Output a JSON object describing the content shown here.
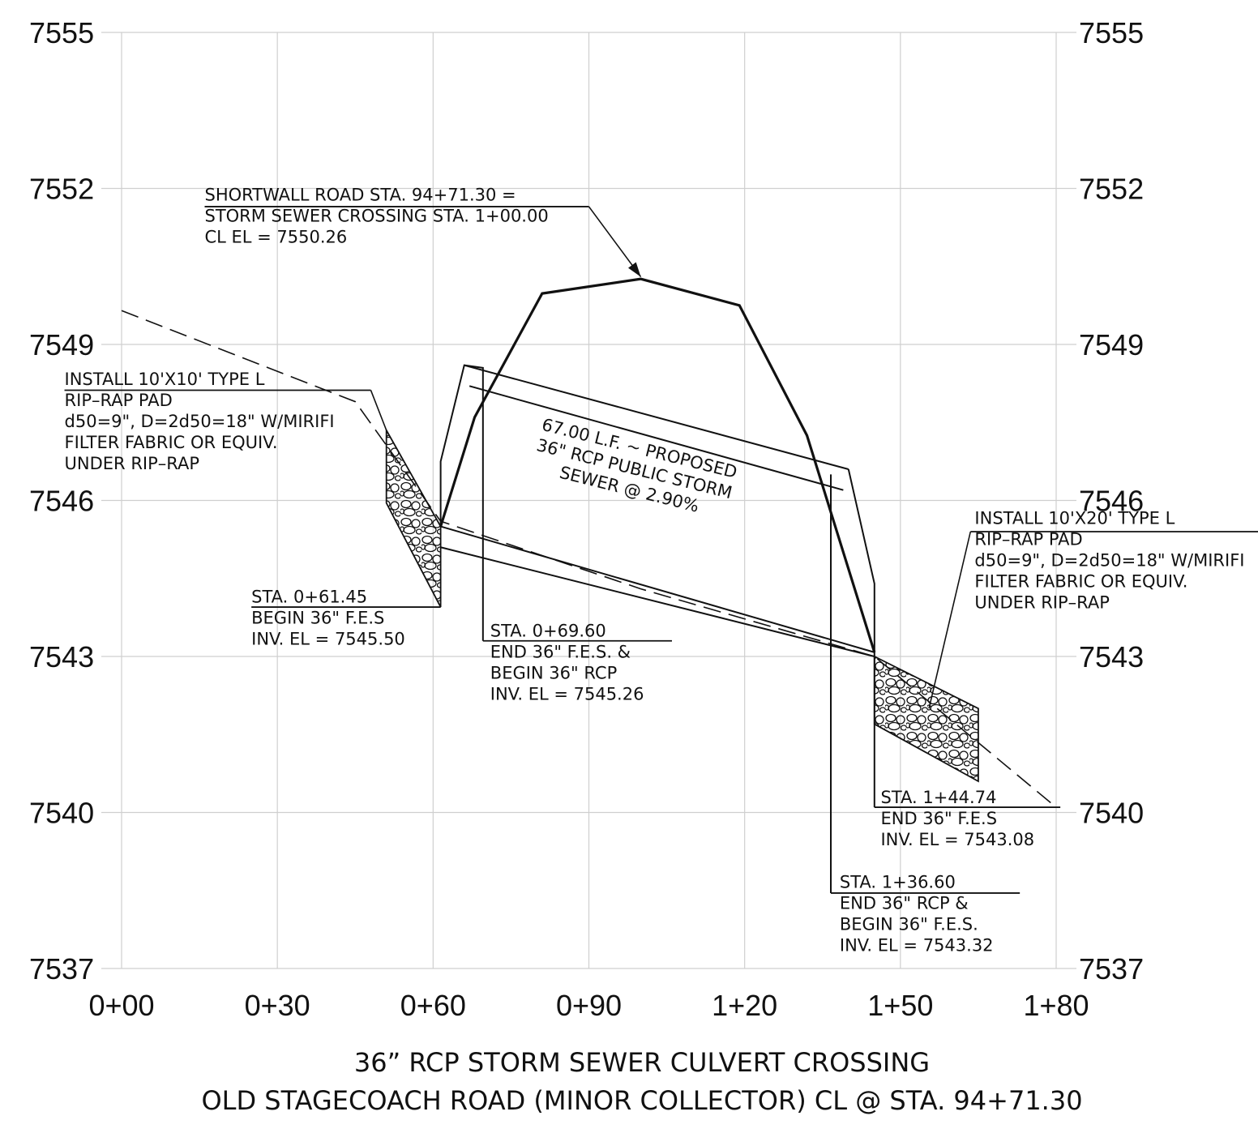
{
  "chart_data": {
    "type": "profile",
    "title_lines": [
      "36” RCP STORM SEWER CULVERT CROSSING",
      "OLD STAGECOACH ROAD (MINOR COLLECTOR) CL @ STA. 94+71.30"
    ],
    "x_ticks": [
      "0+00",
      "0+30",
      "0+60",
      "0+90",
      "1+20",
      "1+50",
      "1+80"
    ],
    "x_values": [
      0,
      30,
      60,
      90,
      120,
      150,
      180
    ],
    "y_ticks": [
      "7537",
      "7540",
      "7543",
      "7546",
      "7549",
      "7552",
      "7555"
    ],
    "y_values": [
      7537,
      7540,
      7543,
      7546,
      7549,
      7552,
      7555
    ],
    "xlim": [
      0,
      180
    ],
    "ylim": [
      7537,
      7555
    ],
    "grid": true,
    "series": [
      {
        "style": "dashed",
        "points": [
          [
            0,
            7549.65
          ],
          [
            45,
            7547.9
          ],
          [
            61.45,
            7545.6
          ],
          [
            100,
            7544.3
          ],
          [
            145,
            7543.0
          ],
          [
            180,
            7540.1
          ]
        ]
      },
      {
        "style": "bold",
        "points": [
          [
            61.45,
            7545.5
          ],
          [
            68,
            7547.6
          ],
          [
            81,
            7549.98
          ],
          [
            100,
            7550.26
          ],
          [
            119,
            7549.75
          ],
          [
            132,
            7547.25
          ],
          [
            145,
            7543.08
          ]
        ]
      },
      {
        "style": "pipe-invert",
        "points": [
          [
            61.45,
            7545.5
          ],
          [
            145,
            7543.08
          ]
        ]
      },
      {
        "style": "pipe-invert",
        "points": [
          [
            61.45,
            7545.1
          ],
          [
            145,
            7543.0
          ]
        ]
      },
      {
        "style": "pipe-crown",
        "points": [
          [
            66,
            7548.6
          ],
          [
            140,
            7546.6
          ]
        ]
      },
      {
        "style": "pipe-crown",
        "points": [
          [
            67,
            7548.2
          ],
          [
            139,
            7546.2
          ]
        ]
      },
      {
        "style": "fes-outline",
        "points": [
          [
            61.45,
            7545.5
          ],
          [
            61.45,
            7546.75
          ],
          [
            66,
            7548.6
          ],
          [
            69.6,
            7548.55
          ],
          [
            69.6,
            7543.3
          ]
        ]
      },
      {
        "style": "fes-outline",
        "points": [
          [
            136.6,
            7546.5
          ],
          [
            136.6,
            7538.45
          ]
        ]
      },
      {
        "style": "fes-outline",
        "points": [
          [
            140,
            7546.6
          ],
          [
            145,
            7544.4
          ],
          [
            145,
            7543.08
          ],
          [
            145,
            7540.1
          ]
        ]
      }
    ],
    "riprap": [
      {
        "points": [
          [
            51,
            7547.35
          ],
          [
            61.45,
            7545.5
          ],
          [
            61.45,
            7543.95
          ],
          [
            51,
            7545.95
          ]
        ]
      },
      {
        "points": [
          [
            145,
            7543.0
          ],
          [
            165,
            7542.0
          ],
          [
            165,
            7540.6
          ],
          [
            145,
            7541.7
          ]
        ]
      }
    ],
    "annotations": [
      {
        "id": "shortwall",
        "lines": [
          "SHORTWALL ROAD STA. 94+71.30 =",
          "STORM SEWER CROSSING STA. 1+00.00",
          "CL EL = 7550.26"
        ],
        "underline": [
          [
            16,
            7551.65
          ],
          [
            90,
            7551.65
          ]
        ],
        "leader": [
          [
            90,
            7551.65
          ],
          [
            100,
            7550.3
          ]
        ],
        "arrow_at": [
          100,
          7550.3
        ],
        "anchor": [
          16,
          7551.77
        ]
      },
      {
        "id": "riprap-10x10",
        "lines": [
          "INSTALL 10'X10' TYPE L",
          "RIP–RAP PAD",
          "d50=9\", D=2d50=18\" W/MIRIFI",
          "FILTER FABRIC OR EQUIV.",
          "UNDER RIP–RAP"
        ],
        "underline": [
          [
            -11,
            7548.12
          ],
          [
            48,
            7548.12
          ]
        ],
        "leader": [
          [
            48,
            7548.12
          ],
          [
            51,
            7547.35
          ]
        ],
        "anchor": [
          -11,
          7548.22
        ]
      },
      {
        "id": "sta-061",
        "lines": [
          "STA. 0+61.45",
          "BEGIN 36\" F.E.S",
          "INV. EL = 7545.50"
        ],
        "underline": [
          [
            25,
            7543.95
          ],
          [
            61.45,
            7543.95
          ]
        ],
        "anchor": [
          25,
          7544.04
        ]
      },
      {
        "id": "sta-069",
        "lines": [
          "STA. 0+69.60",
          "END 36\" F.E.S. &",
          "BEGIN 36\" RCP",
          "INV. EL = 7545.26"
        ],
        "underline": [
          [
            69.6,
            7543.3
          ],
          [
            106,
            7543.3
          ]
        ],
        "anchor": [
          71,
          7543.38
        ]
      },
      {
        "id": "pipe-label",
        "lines": [
          "67.00 L.F. ~ PROPOSED",
          "36\" RCP PUBLIC STORM",
          "SEWER @ 2.90%"
        ],
        "anchor": [
          98.5,
          7546.5
        ],
        "rotate": 14
      },
      {
        "id": "riprap-10x20",
        "lines": [
          "INSTALL 10'X20' TYPE L",
          "RIP–RAP PAD",
          "d50=9\", D=2d50=18\" W/MIRIFI",
          "FILTER FABRIC OR EQUIV.",
          "UNDER RIP–RAP"
        ],
        "underline": [
          [
            163.5,
            7545.4
          ],
          [
            220,
            7545.4
          ]
        ],
        "leader": [
          [
            163.5,
            7545.4
          ],
          [
            155.5,
            7542.0
          ]
        ],
        "anchor": [
          164.3,
          7545.55
        ]
      },
      {
        "id": "sta-144",
        "lines": [
          "STA. 1+44.74",
          "END 36\" F.E.S",
          "INV. EL = 7543.08"
        ],
        "underline": [
          [
            145,
            7540.1
          ],
          [
            180.8,
            7540.1
          ]
        ],
        "anchor": [
          146.2,
          7540.18
        ]
      },
      {
        "id": "sta-136",
        "lines": [
          "STA. 1+36.60",
          "END 36\" RCP &",
          "BEGIN 36\" F.E.S.",
          "INV. EL = 7543.32"
        ],
        "underline": [
          [
            136.6,
            7538.45
          ],
          [
            173,
            7538.45
          ]
        ],
        "anchor": [
          138.3,
          7538.55
        ]
      }
    ]
  }
}
